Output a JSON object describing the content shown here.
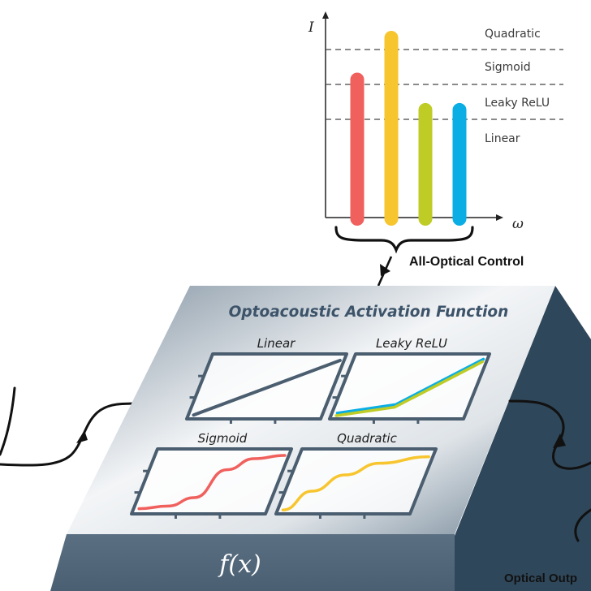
{
  "spectrum": {
    "y_axis_label": "I",
    "x_axis_label": "ω",
    "levels": [
      "Quadratic",
      "Sigmoid",
      "Leaky ReLU",
      "Linear"
    ],
    "bars": [
      {
        "color": "#f0605d",
        "level": 0.78
      },
      {
        "color": "#f7c52e",
        "level": 1.0
      },
      {
        "color": "#bfcc25",
        "level": 0.62
      },
      {
        "color": "#0aaee4",
        "level": 0.62
      }
    ]
  },
  "control_label": "All-Optical Control",
  "chip": {
    "title": "Optoacoustic Activation Function",
    "formula": "f(x)",
    "plots": [
      {
        "name": "Linear",
        "colors": [
          "#4b5e70"
        ]
      },
      {
        "name": "Leaky ReLU",
        "colors": [
          "#0aaee4",
          "#bfcc25"
        ]
      },
      {
        "name": "Sigmoid",
        "colors": [
          "#f0605d"
        ]
      },
      {
        "name": "Quadratic",
        "colors": [
          "#f7c52e"
        ]
      }
    ]
  },
  "output_label": "Optical Outp",
  "colors": {
    "chip_top_light": "#f1f3f5",
    "chip_top_dark": "#7e8f9e",
    "chip_front": "#52677a",
    "chip_side": "#2e4558",
    "plot_frame": "#4b5e70"
  }
}
